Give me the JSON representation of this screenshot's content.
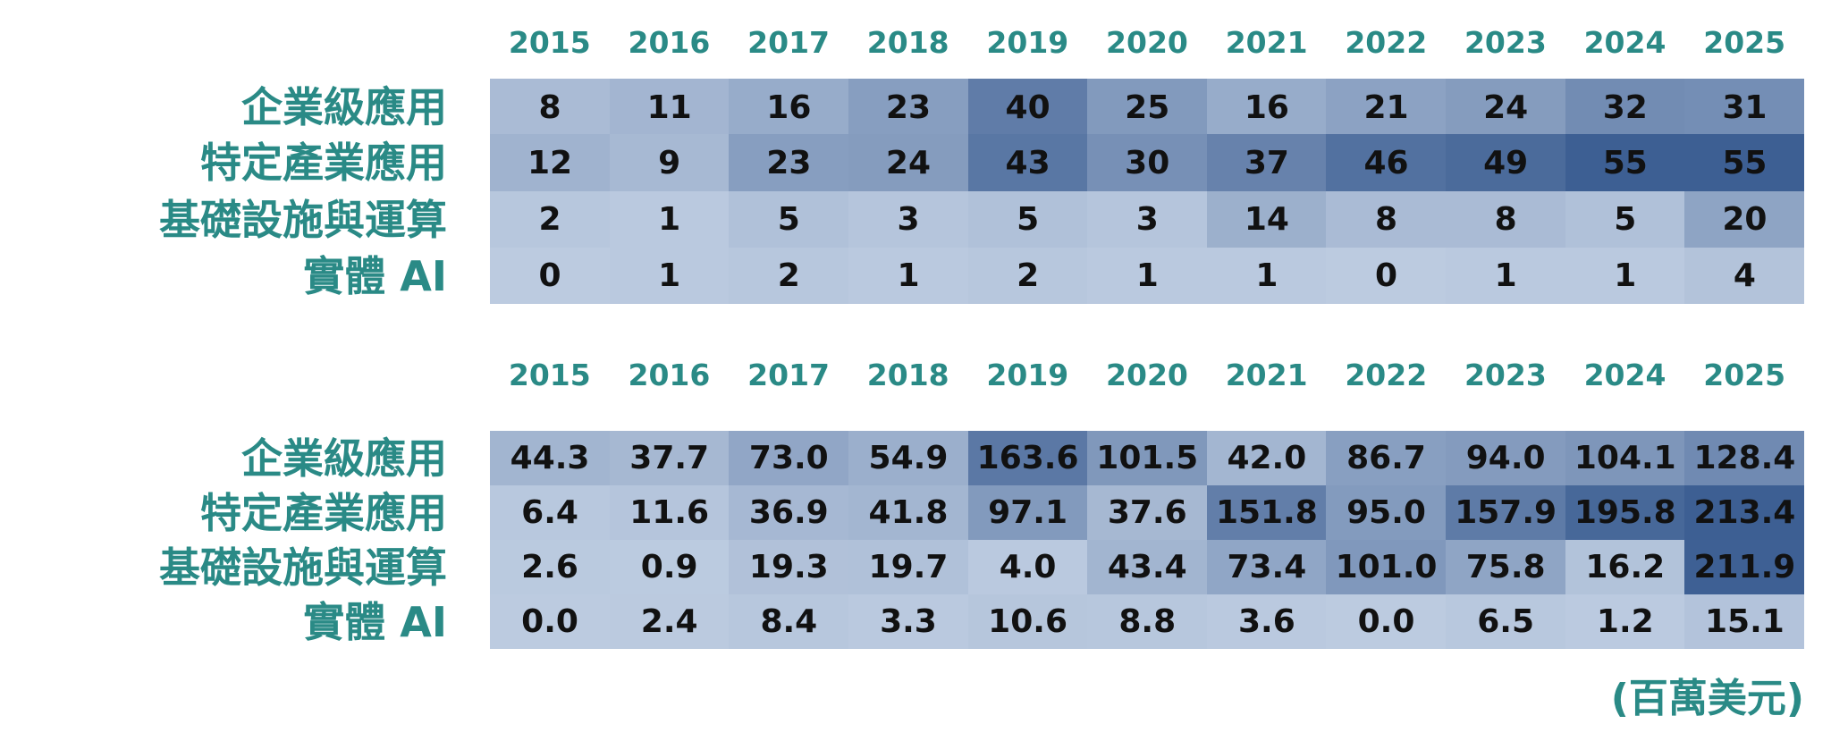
{
  "chart_data": [
    {
      "type": "heatmap",
      "columns": [
        "2015",
        "2016",
        "2017",
        "2018",
        "2019",
        "2020",
        "2021",
        "2022",
        "2023",
        "2024",
        "2025"
      ],
      "rows": [
        "企業級應用",
        "特定產業應用",
        "基礎設施與運算",
        "實體 AI"
      ],
      "values": [
        [
          "8",
          "11",
          "16",
          "23",
          "40",
          "25",
          "16",
          "21",
          "24",
          "32",
          "31"
        ],
        [
          "12",
          "9",
          "23",
          "24",
          "43",
          "30",
          "37",
          "46",
          "49",
          "55",
          "55"
        ],
        [
          "2",
          "1",
          "5",
          "3",
          "5",
          "3",
          "14",
          "8",
          "8",
          "5",
          "20"
        ],
        [
          "0",
          "1",
          "2",
          "1",
          "2",
          "1",
          "1",
          "0",
          "1",
          "1",
          "4"
        ]
      ]
    },
    {
      "type": "heatmap",
      "columns": [
        "2015",
        "2016",
        "2017",
        "2018",
        "2019",
        "2020",
        "2021",
        "2022",
        "2023",
        "2024",
        "2025"
      ],
      "rows": [
        "企業級應用",
        "特定產業應用",
        "基礎設施與運算",
        "實體 AI"
      ],
      "values": [
        [
          "44.3",
          "37.7",
          "73.0",
          "54.9",
          "163.6",
          "101.5",
          "42.0",
          "86.7",
          "94.0",
          "104.1",
          "128.4"
        ],
        [
          "6.4",
          "11.6",
          "36.9",
          "41.8",
          "97.1",
          "37.6",
          "151.8",
          "95.0",
          "157.9",
          "195.8",
          "213.4"
        ],
        [
          "2.6",
          "0.9",
          "19.3",
          "19.7",
          "4.0",
          "43.4",
          "73.4",
          "101.0",
          "75.8",
          "16.2",
          "211.9"
        ],
        [
          "0.0",
          "2.4",
          "8.4",
          "3.3",
          "10.6",
          "8.8",
          "3.6",
          "0.0",
          "6.5",
          "1.2",
          "15.1"
        ]
      ],
      "unit": "(百萬美元)"
    }
  ],
  "colors": {
    "label": "#2a8a86",
    "cell_low": "#bccbe0",
    "cell_high": "#3d5f93",
    "value_text": "#111111"
  }
}
